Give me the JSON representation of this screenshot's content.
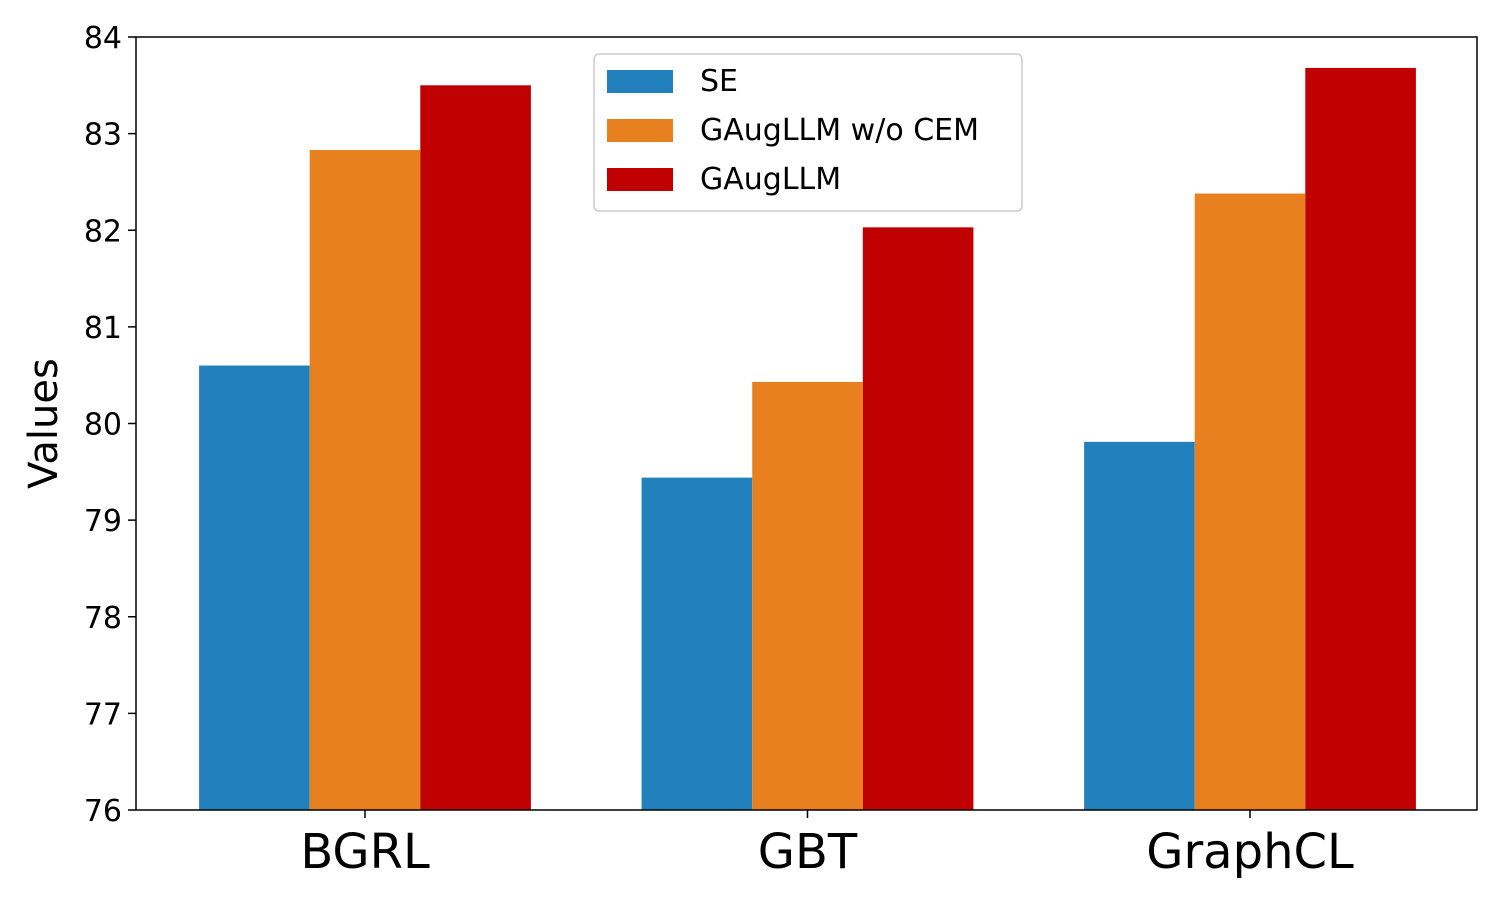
{
  "chart_data": {
    "type": "bar",
    "categories": [
      "BGRL",
      "GBT",
      "GraphCL"
    ],
    "series": [
      {
        "name": "SE",
        "values": [
          80.6,
          79.44,
          79.81
        ],
        "color": "#2280bc"
      },
      {
        "name": "GAugLLM w/o CEM",
        "values": [
          82.83,
          80.43,
          82.38
        ],
        "color": "#e8801f"
      },
      {
        "name": "GAugLLM",
        "values": [
          83.5,
          82.03,
          83.68
        ],
        "color": "#c00000"
      }
    ],
    "title": "",
    "xlabel": "",
    "ylabel": "Values",
    "ylim": [
      76,
      84
    ],
    "yticks": [
      76,
      77,
      78,
      79,
      80,
      81,
      82,
      83,
      84
    ],
    "grid": false,
    "legend_position": "top-center"
  }
}
